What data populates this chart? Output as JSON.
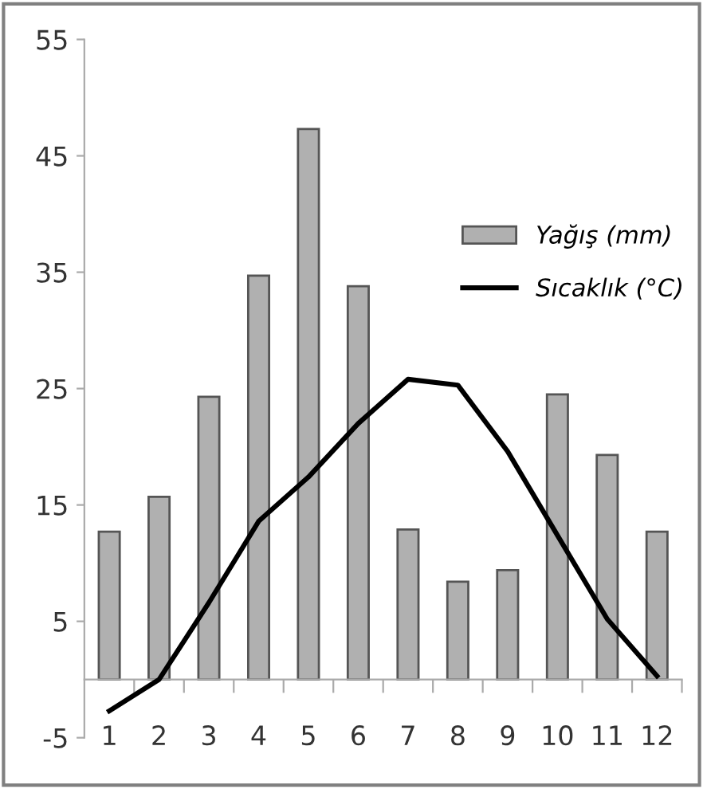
{
  "chart_data": {
    "type": "bar",
    "categories": [
      "1",
      "2",
      "3",
      "4",
      "5",
      "6",
      "7",
      "8",
      "9",
      "10",
      "11",
      "12"
    ],
    "series": [
      {
        "name": "Yağış (mm)",
        "color": "#b0b0b0",
        "values": [
          12.7,
          15.7,
          24.3,
          34.7,
          47.3,
          33.8,
          12.9,
          8.4,
          9.4,
          24.5,
          19.3,
          12.7
        ]
      },
      {
        "name": "Sıcaklık (°C)",
        "type": "line",
        "color": "#000000",
        "values": [
          -2.7,
          0,
          6.6,
          13.6,
          17.4,
          22.0,
          25.8,
          25.3,
          19.6,
          12.4,
          5.2,
          0.3
        ]
      }
    ],
    "ylim": [
      -5,
      55
    ],
    "yticks": [
      -5,
      5,
      15,
      25,
      35,
      45,
      55
    ],
    "grid": false,
    "legend": "right"
  }
}
